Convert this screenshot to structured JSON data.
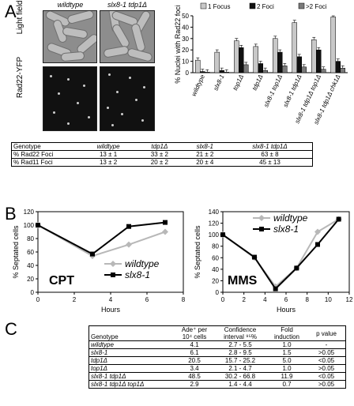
{
  "panels": {
    "a": "A",
    "b": "B",
    "c": "C"
  },
  "micrographs": {
    "col1": "wildtype",
    "col2": "slx8-1 tdp1Δ",
    "row1": "Light field",
    "row2": "Rad22-YFP"
  },
  "table_a": {
    "headers": [
      "Genotype",
      "wildtype",
      "tdp1Δ",
      "slx8-1",
      "slx8-1 tdp1Δ"
    ],
    "rows": [
      [
        "% Rad22 Foci",
        "13 ± 1",
        "33 ± 2",
        "21 ± 2",
        "63 ± 8"
      ],
      [
        "% Rad11 Foci",
        "13 ± 2",
        "20 ± 2",
        "20 ± 4",
        "45 ± 13"
      ]
    ]
  },
  "table_c": {
    "headers": [
      "Genotype",
      "Ade⁺ per 10⁴ cells",
      "Confidence interval ⁹⁵%",
      "Fold induction",
      "p value"
    ],
    "rows": [
      [
        "wildtype",
        "4.1",
        "2.7 - 5.5",
        "1.0",
        "-"
      ],
      [
        "slx8-1",
        "6.1",
        "2.8 - 9.5",
        "1.5",
        ">0.05"
      ],
      [
        "tdp1Δ",
        "20.5",
        "15.7 - 25.2",
        "5.0",
        "<0.05"
      ],
      [
        "top1Δ",
        "3.4",
        "2.1 - 4.7",
        "1.0",
        ">0.05"
      ],
      [
        "slx8-1 tdp1Δ",
        "48.5",
        "30.2 - 66.8",
        "11.9",
        "<0.05"
      ],
      [
        "slx8-1 tdp1Δ top1Δ",
        "2.9",
        "1.4 - 4.4",
        "0.7",
        ">0.05"
      ]
    ]
  },
  "chart_data": [
    {
      "type": "bar",
      "ylabel": "% Nuclei with Rad22 foci",
      "ylim": [
        0,
        50
      ],
      "yticks": [
        0,
        10,
        20,
        30,
        40,
        50
      ],
      "categories": [
        "wildtype",
        "slx8-1",
        "top1Δ",
        "tdp1Δ",
        "slx8-1 top1Δ",
        "slx8-1 tdp1Δ",
        "slx8-1 tdp1Δ top1Δ",
        "slx8-1 tdp1Δ chk1Δ"
      ],
      "series": [
        {
          "name": "1 Focus",
          "color": "#c8c8c8",
          "values": [
            11,
            18,
            28,
            23,
            30,
            44,
            29,
            49
          ]
        },
        {
          "name": "2 Foci",
          "color": "#111111",
          "values": [
            1,
            2,
            22,
            8,
            18,
            14,
            20,
            10
          ]
        },
        {
          "name": ">2 Foci",
          "color": "#7a7a7a",
          "values": [
            0.5,
            0.5,
            7,
            2,
            6,
            5,
            3,
            4
          ]
        }
      ],
      "legend": "top"
    },
    {
      "type": "line",
      "title": "CPT",
      "xlabel": "Hours",
      "ylabel": "% Septated cells",
      "xlim": [
        0,
        8
      ],
      "ylim": [
        0,
        120
      ],
      "xticks": [
        0,
        2,
        4,
        6,
        8
      ],
      "yticks": [
        0,
        20,
        40,
        60,
        80,
        100,
        120
      ],
      "series": [
        {
          "name": "wildtype",
          "color": "#b8b8b8",
          "marker": "diamond",
          "x": [
            0,
            3,
            5,
            7
          ],
          "y": [
            100,
            54,
            71,
            90
          ]
        },
        {
          "name": "slx8-1",
          "color": "#000000",
          "marker": "square",
          "x": [
            0,
            3,
            5,
            7
          ],
          "y": [
            100,
            57,
            98,
            104
          ]
        }
      ],
      "legend": "bottom-right"
    },
    {
      "type": "line",
      "title": "MMS",
      "xlabel": "Hours",
      "ylabel": "% Septated cells",
      "xlim": [
        0,
        12
      ],
      "ylim": [
        0,
        140
      ],
      "xticks": [
        0,
        2,
        4,
        6,
        8,
        10,
        12
      ],
      "yticks": [
        0,
        20,
        40,
        60,
        80,
        100,
        120,
        140
      ],
      "series": [
        {
          "name": "wildtype",
          "color": "#b8b8b8",
          "marker": "diamond",
          "x": [
            0,
            3,
            5,
            7,
            9,
            11
          ],
          "y": [
            100,
            60,
            10,
            42,
            105,
            127
          ]
        },
        {
          "name": "slx8-1",
          "color": "#000000",
          "marker": "square",
          "x": [
            0,
            3,
            5,
            7,
            9,
            11
          ],
          "y": [
            100,
            61,
            6,
            42,
            83,
            127
          ]
        }
      ],
      "legend": "top-left"
    }
  ]
}
